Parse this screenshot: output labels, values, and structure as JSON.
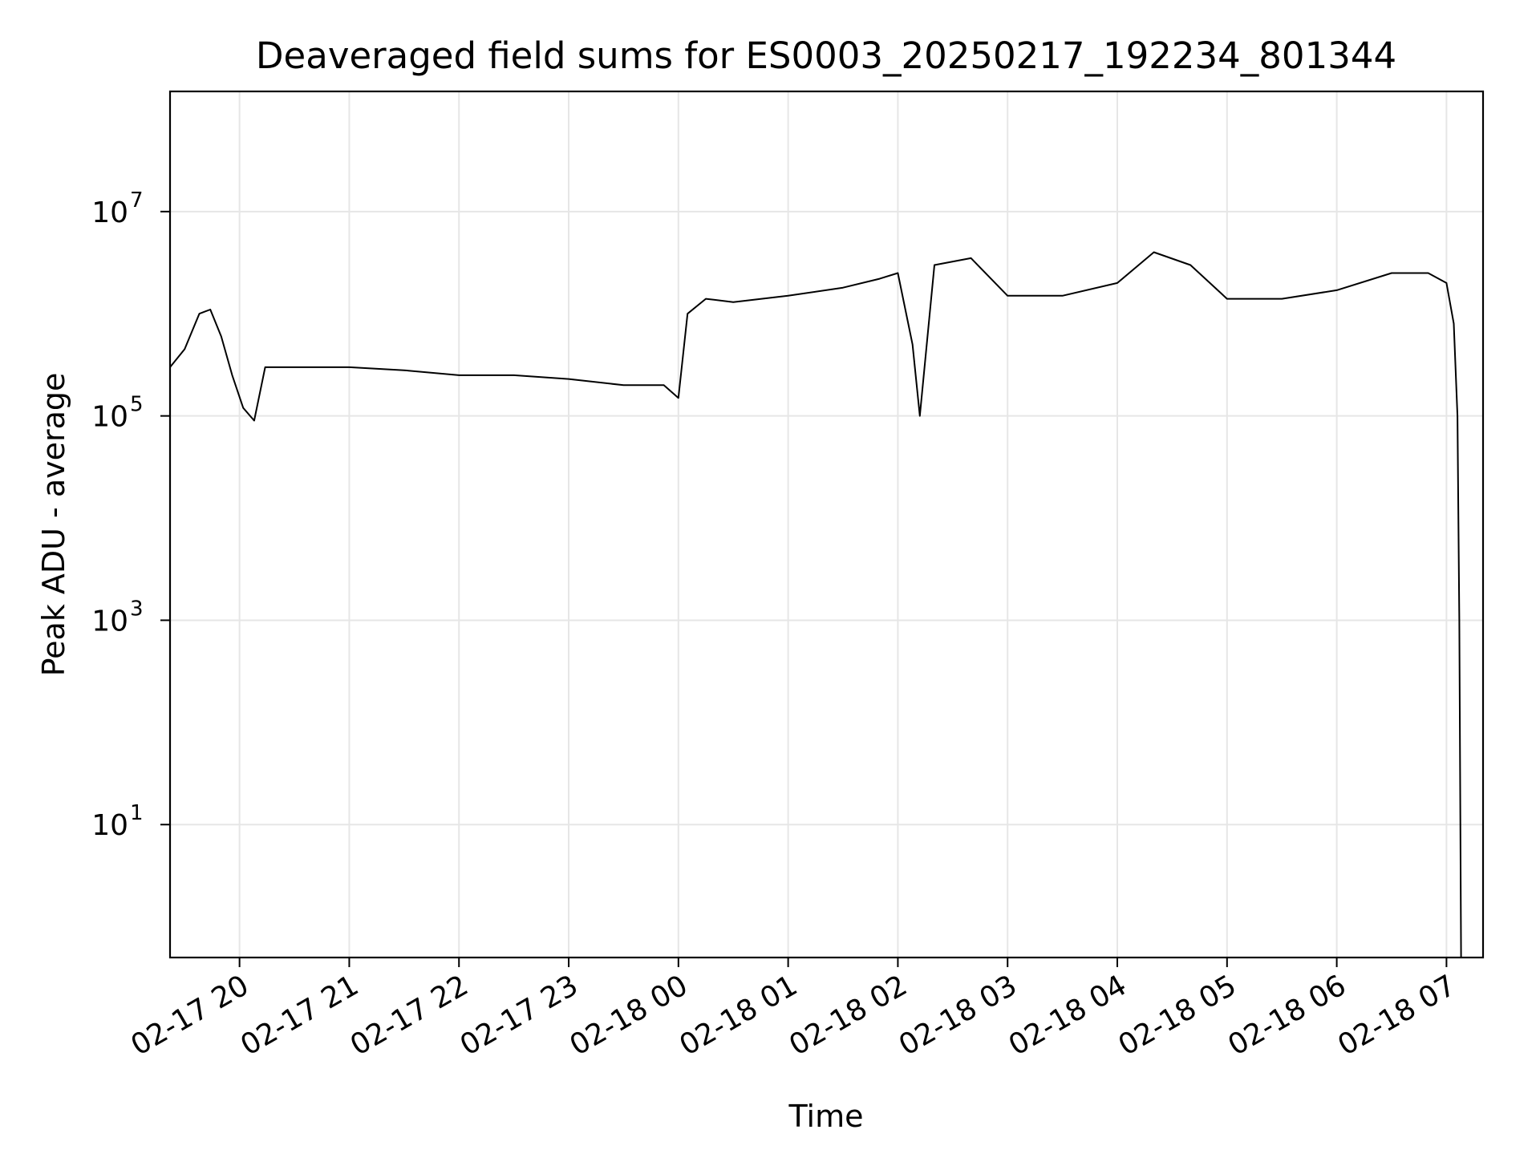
{
  "chart_data": {
    "type": "line",
    "title": "Deaveraged field sums for ES0003_20250217_192234_801344",
    "xlabel": "Time",
    "ylabel": "Peak ADU - average",
    "x_scale": "time",
    "y_scale": "log",
    "xlim": [
      "2025-02-17 19:22",
      "2025-02-18 07:20"
    ],
    "ylim": [
      0.5,
      150000000
    ],
    "x_ticks": [
      {
        "value": "2025-02-17 20:00",
        "label": "02-17 20"
      },
      {
        "value": "2025-02-17 21:00",
        "label": "02-17 21"
      },
      {
        "value": "2025-02-17 22:00",
        "label": "02-17 22"
      },
      {
        "value": "2025-02-17 23:00",
        "label": "02-17 23"
      },
      {
        "value": "2025-02-18 00:00",
        "label": "02-18 00"
      },
      {
        "value": "2025-02-18 01:00",
        "label": "02-18 01"
      },
      {
        "value": "2025-02-18 02:00",
        "label": "02-18 02"
      },
      {
        "value": "2025-02-18 03:00",
        "label": "02-18 03"
      },
      {
        "value": "2025-02-18 04:00",
        "label": "02-18 04"
      },
      {
        "value": "2025-02-18 05:00",
        "label": "02-18 05"
      },
      {
        "value": "2025-02-18 06:00",
        "label": "02-18 06"
      },
      {
        "value": "2025-02-18 07:00",
        "label": "02-18 07"
      }
    ],
    "y_ticks": [
      {
        "value": 10,
        "base": "10",
        "exp": "1"
      },
      {
        "value": 1000,
        "base": "10",
        "exp": "3"
      },
      {
        "value": 100000,
        "base": "10",
        "exp": "5"
      },
      {
        "value": 10000000,
        "base": "10",
        "exp": "7"
      }
    ],
    "grid": true,
    "legend": "none",
    "line_color": "#000000",
    "grid_color": "#e6e6e6",
    "series": [
      {
        "x": [
          "2025-02-17 19:22",
          "2025-02-17 19:30",
          "2025-02-17 19:38",
          "2025-02-17 19:44",
          "2025-02-17 19:50",
          "2025-02-17 19:56",
          "2025-02-17 20:02",
          "2025-02-17 20:08",
          "2025-02-17 20:14",
          "2025-02-17 20:30",
          "2025-02-17 21:00",
          "2025-02-17 21:30",
          "2025-02-17 22:00",
          "2025-02-17 22:30",
          "2025-02-17 23:00",
          "2025-02-17 23:30",
          "2025-02-17 23:52",
          "2025-02-18 00:00",
          "2025-02-18 00:05",
          "2025-02-18 00:15",
          "2025-02-18 00:30",
          "2025-02-18 01:00",
          "2025-02-18 01:30",
          "2025-02-18 01:50",
          "2025-02-18 02:00",
          "2025-02-18 02:08",
          "2025-02-18 02:12",
          "2025-02-18 02:20",
          "2025-02-18 02:40",
          "2025-02-18 03:00",
          "2025-02-18 03:30",
          "2025-02-18 04:00",
          "2025-02-18 04:20",
          "2025-02-18 04:40",
          "2025-02-18 05:00",
          "2025-02-18 05:30",
          "2025-02-18 06:00",
          "2025-02-18 06:30",
          "2025-02-18 06:50",
          "2025-02-18 07:00",
          "2025-02-18 07:04",
          "2025-02-18 07:06",
          "2025-02-18 07:07",
          "2025-02-18 07:08"
        ],
        "y": [
          300000,
          450000,
          1000000,
          1100000,
          600000,
          250000,
          120000,
          90000,
          300000,
          300000,
          300000,
          280000,
          250000,
          250000,
          230000,
          200000,
          200000,
          150000,
          1000000,
          1400000,
          1300000,
          1500000,
          1800000,
          2200000,
          2500000,
          500000,
          100000,
          3000000,
          3500000,
          1500000,
          1500000,
          2000000,
          4000000,
          3000000,
          1400000,
          1400000,
          1700000,
          2500000,
          2500000,
          2000000,
          800000,
          100000,
          1000,
          0.5
        ]
      }
    ],
    "annotations": [
      {
        "x": "2025-02-18 00:10",
        "y": 60000000,
        "text": ""
      }
    ]
  }
}
